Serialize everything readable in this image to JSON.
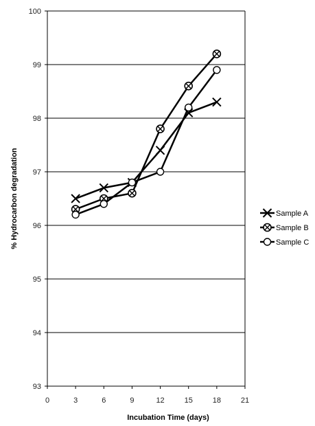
{
  "chart_data": {
    "type": "line",
    "title": "",
    "xlabel": "Incubation Time (days)",
    "ylabel": "% Hydrocarbon degradation",
    "xlim": [
      0,
      21
    ],
    "ylim": [
      93,
      100
    ],
    "x_ticks": [
      0,
      3,
      6,
      9,
      12,
      15,
      18,
      21
    ],
    "y_ticks": [
      93,
      94,
      95,
      96,
      97,
      98,
      99,
      100
    ],
    "grid": "horizontal major gridlines",
    "legend_position": "right",
    "x": [
      3,
      6,
      9,
      12,
      15,
      18
    ],
    "series": [
      {
        "name": "Sample A",
        "marker": "x",
        "values": [
          96.5,
          96.7,
          96.8,
          97.4,
          98.1,
          98.3
        ]
      },
      {
        "name": "Sample B",
        "marker": "circle-x",
        "values": [
          96.3,
          96.5,
          96.6,
          97.8,
          98.6,
          99.2
        ]
      },
      {
        "name": "Sample C",
        "marker": "open-circle",
        "values": [
          96.2,
          96.4,
          96.8,
          97.0,
          98.2,
          98.9
        ]
      }
    ],
    "colors": {
      "line": "#000000",
      "grid": "#000000",
      "marker_fill": "#ffffff"
    }
  }
}
